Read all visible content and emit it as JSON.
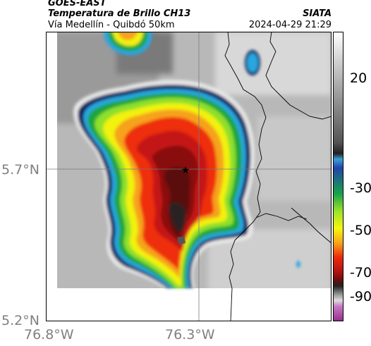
{
  "header": {
    "satellite": "GOES-EAST",
    "product": "Temperatura de Brillo CH13",
    "route": "Vía Medellín - Quibdó 50km",
    "org": "SIATA",
    "datetime": "2024-04-29 21:29"
  },
  "map": {
    "lat_labels": [
      "5.7°N",
      "5.2°N"
    ],
    "lon_labels": [
      "76.8°W",
      "76.3°W"
    ],
    "marker_icon": "star-icon"
  },
  "colorbar": {
    "ticks": [
      "20",
      "-30",
      "-50",
      "-70",
      "-90"
    ],
    "stops": [
      "#ffffff",
      "#d9d9d9",
      "#999999",
      "#555555",
      "#111111",
      "#3aa0d8",
      "#17a34a",
      "#9be22b",
      "#f6f60c",
      "#f7a61a",
      "#ee2a0d",
      "#b11313",
      "#6b0d0d",
      "#222222",
      "#999999",
      "#c67ac5",
      "#9a2f8e"
    ]
  }
}
